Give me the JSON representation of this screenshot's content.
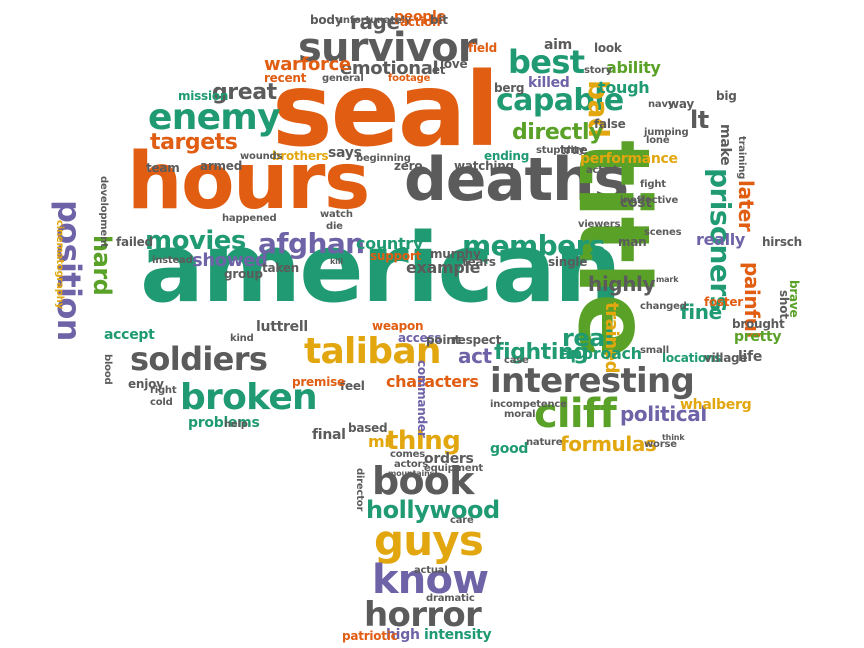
{
  "colors": {
    "orange": "#e05d12",
    "teal": "#1f9a72",
    "gray": "#5b5b5b",
    "gold": "#e2a70f",
    "green": "#5aa127",
    "purple": "#6f63a8",
    "pink": "#d6338a"
  },
  "words": [
    {
      "text": "american",
      "color": "teal"
    },
    {
      "text": "seal",
      "color": "orange"
    },
    {
      "text": "hours",
      "color": "orange"
    },
    {
      "text": "deaths",
      "color": "gray"
    },
    {
      "text": "title",
      "color": "green"
    },
    {
      "text": "survivor",
      "color": "gray"
    },
    {
      "text": "enemy",
      "color": "teal"
    },
    {
      "text": "capable",
      "color": "teal"
    },
    {
      "text": "best",
      "color": "teal"
    },
    {
      "text": "bad",
      "color": "gold"
    },
    {
      "text": "directly",
      "color": "green"
    },
    {
      "text": "targets",
      "color": "orange"
    },
    {
      "text": "movies",
      "color": "teal"
    },
    {
      "text": "afghan",
      "color": "purple"
    },
    {
      "text": "members",
      "color": "teal"
    },
    {
      "text": "prisoners",
      "color": "teal"
    },
    {
      "text": "position",
      "color": "purple"
    },
    {
      "text": "hard",
      "color": "green"
    },
    {
      "text": "soldiers",
      "color": "gray"
    },
    {
      "text": "taliban",
      "color": "gold"
    },
    {
      "text": "broken",
      "color": "teal"
    },
    {
      "text": "interesting",
      "color": "gray"
    },
    {
      "text": "cliff",
      "color": "green"
    },
    {
      "text": "real",
      "color": "teal"
    },
    {
      "text": "fighting",
      "color": "teal"
    },
    {
      "text": "political",
      "color": "purple"
    },
    {
      "text": "formulas",
      "color": "gold"
    },
    {
      "text": "thing",
      "color": "gold"
    },
    {
      "text": "book",
      "color": "gray"
    },
    {
      "text": "hollywood",
      "color": "teal"
    },
    {
      "text": "guys",
      "color": "gold"
    },
    {
      "text": "know",
      "color": "purple"
    },
    {
      "text": "horror",
      "color": "gray"
    },
    {
      "text": "painful",
      "color": "orange"
    },
    {
      "text": "later",
      "color": "orange"
    },
    {
      "text": "fine",
      "color": "teal"
    },
    {
      "text": "trained",
      "color": "gold"
    },
    {
      "text": "highly",
      "color": "gray"
    },
    {
      "text": "great",
      "color": "gray"
    },
    {
      "text": "emotional",
      "color": "gray"
    },
    {
      "text": "warforce",
      "color": "orange"
    },
    {
      "text": "rage",
      "color": "gray"
    },
    {
      "text": "people",
      "color": "orange"
    },
    {
      "text": "ability",
      "color": "green"
    },
    {
      "text": "tough",
      "color": "teal"
    },
    {
      "text": "killed",
      "color": "purple"
    },
    {
      "text": "lt",
      "color": "gray"
    },
    {
      "text": "showed",
      "color": "purple"
    },
    {
      "text": "example",
      "color": "gray"
    },
    {
      "text": "act",
      "color": "purple"
    },
    {
      "text": "approach",
      "color": "teal"
    },
    {
      "text": "characters",
      "color": "orange"
    },
    {
      "text": "performance",
      "color": "gold"
    },
    {
      "text": "whalberg",
      "color": "gold"
    },
    {
      "text": "pretty",
      "color": "green"
    },
    {
      "text": "really",
      "color": "purple"
    },
    {
      "text": "accept",
      "color": "teal"
    },
    {
      "text": "enjoy",
      "color": "gray"
    },
    {
      "text": "problems",
      "color": "teal"
    },
    {
      "text": "luttrell",
      "color": "gray"
    },
    {
      "text": "country",
      "color": "teal"
    },
    {
      "text": "orders",
      "color": "gray"
    },
    {
      "text": "good",
      "color": "teal"
    },
    {
      "text": "intensity",
      "color": "teal"
    },
    {
      "text": "high",
      "color": "purple"
    },
    {
      "text": "patriotic",
      "color": "orange"
    },
    {
      "text": "final",
      "color": "gray"
    },
    {
      "text": "mr",
      "color": "gold"
    },
    {
      "text": "life",
      "color": "gray"
    },
    {
      "text": "brought",
      "color": "gray"
    },
    {
      "text": "says",
      "color": "gray"
    },
    {
      "text": "brothers",
      "color": "gold"
    },
    {
      "text": "ending",
      "color": "teal"
    },
    {
      "text": "cost",
      "color": "gray"
    },
    {
      "text": "man",
      "color": "gray"
    },
    {
      "text": "group",
      "color": "gray"
    },
    {
      "text": "taken",
      "color": "gray"
    },
    {
      "text": "feel",
      "color": "gray"
    },
    {
      "text": "premise",
      "color": "orange"
    },
    {
      "text": "access",
      "color": "purple"
    },
    {
      "text": "point",
      "color": "gray"
    },
    {
      "text": "respect",
      "color": "gray"
    },
    {
      "text": "weapon",
      "color": "orange"
    },
    {
      "text": "tears",
      "color": "gray"
    },
    {
      "text": "single",
      "color": "gray"
    },
    {
      "text": "murphy",
      "color": "gray"
    },
    {
      "text": "support",
      "color": "orange"
    },
    {
      "text": "locations",
      "color": "teal"
    },
    {
      "text": "village",
      "color": "gray"
    },
    {
      "text": "shot",
      "color": "gray"
    },
    {
      "text": "brave",
      "color": "green"
    },
    {
      "text": "hirsch",
      "color": "gray"
    },
    {
      "text": "foster",
      "color": "orange"
    },
    {
      "text": "make",
      "color": "gray"
    },
    {
      "text": "aim",
      "color": "gray"
    },
    {
      "text": "look",
      "color": "gray"
    },
    {
      "text": "field",
      "color": "orange"
    },
    {
      "text": "mission",
      "color": "teal"
    },
    {
      "text": "body",
      "color": "gray"
    },
    {
      "text": "unfortunately",
      "color": "gray"
    },
    {
      "text": "action",
      "color": "orange"
    },
    {
      "text": "bit",
      "color": "gray"
    },
    {
      "text": "recent",
      "color": "orange"
    },
    {
      "text": "general",
      "color": "gray"
    },
    {
      "text": "footage",
      "color": "orange"
    },
    {
      "text": "love",
      "color": "gray"
    },
    {
      "text": "let",
      "color": "gray"
    },
    {
      "text": "story",
      "color": "gray"
    },
    {
      "text": "berg",
      "color": "gray"
    },
    {
      "text": "navy",
      "color": "gray"
    },
    {
      "text": "way",
      "color": "gray"
    },
    {
      "text": "big",
      "color": "gray"
    },
    {
      "text": "false",
      "color": "gray"
    },
    {
      "text": "jumping",
      "color": "gray"
    },
    {
      "text": "lone",
      "color": "gray"
    },
    {
      "text": "training",
      "color": "gray"
    },
    {
      "text": "team",
      "color": "gray"
    },
    {
      "text": "armed",
      "color": "gray"
    },
    {
      "text": "wounds",
      "color": "gray"
    },
    {
      "text": "beginning",
      "color": "gray"
    },
    {
      "text": "zero",
      "color": "gray"
    },
    {
      "text": "watching",
      "color": "gray"
    },
    {
      "text": "stupidity",
      "color": "gray"
    },
    {
      "text": "true",
      "color": "gray"
    },
    {
      "text": "acted",
      "color": "gray"
    },
    {
      "text": "fight",
      "color": "gray"
    },
    {
      "text": "ineffective",
      "color": "gray"
    },
    {
      "text": "happened",
      "color": "gray"
    },
    {
      "text": "development",
      "color": "gray"
    },
    {
      "text": "watch",
      "color": "gray"
    },
    {
      "text": "die",
      "color": "gray"
    },
    {
      "text": "viewers",
      "color": "gray"
    },
    {
      "text": "scenes",
      "color": "gray"
    },
    {
      "text": "failed",
      "color": "gray"
    },
    {
      "text": "instead",
      "color": "gray"
    },
    {
      "text": "kill",
      "color": "gray"
    },
    {
      "text": "cinematography",
      "color": "gold"
    },
    {
      "text": "kind",
      "color": "gray"
    },
    {
      "text": "mark",
      "color": "gray"
    },
    {
      "text": "changed",
      "color": "gray"
    },
    {
      "text": "small",
      "color": "gray"
    },
    {
      "text": "case",
      "color": "gray"
    },
    {
      "text": "blood",
      "color": "gray"
    },
    {
      "text": "right",
      "color": "gray"
    },
    {
      "text": "cold",
      "color": "gray"
    },
    {
      "text": "help",
      "color": "gray"
    },
    {
      "text": "commander",
      "color": "purple"
    },
    {
      "text": "based",
      "color": "gray"
    },
    {
      "text": "incompetence",
      "color": "gray"
    },
    {
      "text": "moral",
      "color": "gray"
    },
    {
      "text": "nature",
      "color": "gray"
    },
    {
      "text": "worse",
      "color": "gray"
    },
    {
      "text": "think",
      "color": "gray"
    },
    {
      "text": "director",
      "color": "gray"
    },
    {
      "text": "comes",
      "color": "gray"
    },
    {
      "text": "actors",
      "color": "gray"
    },
    {
      "text": "mountains",
      "color": "gray"
    },
    {
      "text": "equipment",
      "color": "gray"
    },
    {
      "text": "care",
      "color": "gray"
    },
    {
      "text": "actual",
      "color": "gray"
    },
    {
      "text": "dramatic",
      "color": "gray"
    }
  ]
}
